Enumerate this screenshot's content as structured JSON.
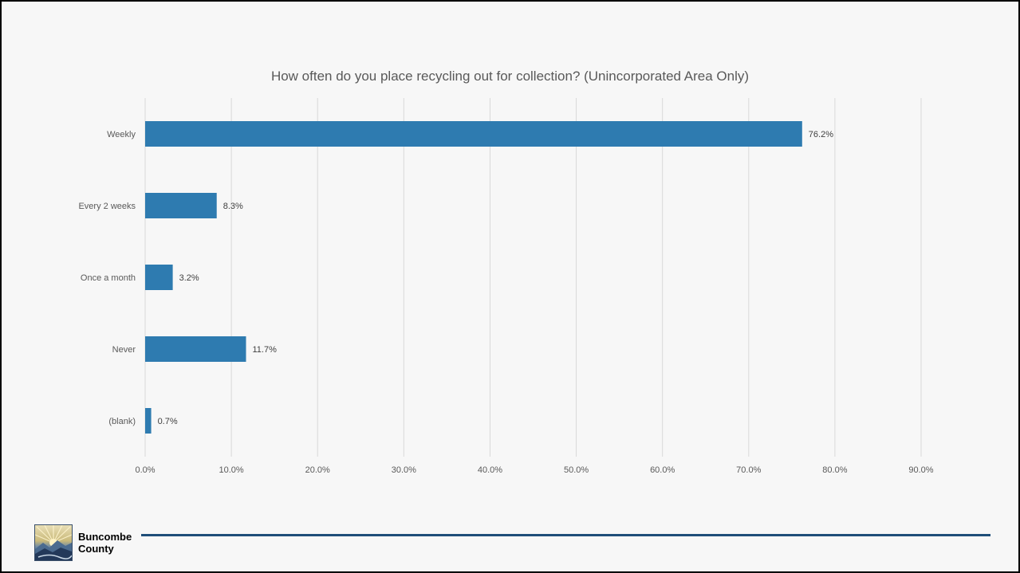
{
  "chart_data": {
    "type": "bar",
    "orientation": "horizontal",
    "title": "How often do you place recycling out for collection?  (Unincorporated Area Only)",
    "categories": [
      "Weekly",
      "Every 2 weeks",
      "Once a month",
      "Never",
      "(blank)"
    ],
    "values": [
      76.2,
      8.3,
      3.2,
      11.7,
      0.7
    ],
    "data_labels": [
      "76.2%",
      "8.3%",
      "3.2%",
      "11.7%",
      "0.7%"
    ],
    "x_ticks": [
      "0.0%",
      "10.0%",
      "20.0%",
      "30.0%",
      "40.0%",
      "50.0%",
      "60.0%",
      "70.0%",
      "80.0%",
      "90.0%"
    ],
    "xlim": [
      0,
      90
    ],
    "grid": true,
    "xlabel": "",
    "ylabel": "",
    "bar_color": "#2e7bb0"
  },
  "footer": {
    "brand_line1": "Buncombe",
    "brand_line2": "County",
    "line_color": "#1f4e79"
  }
}
